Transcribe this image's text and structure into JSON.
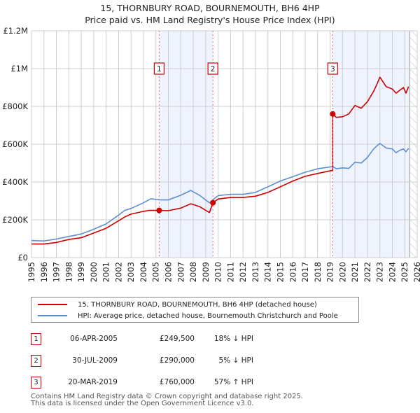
{
  "title_line1": "15, THORNBURY ROAD, BOURNEMOUTH, BH6 4HP",
  "title_line2": "Price paid vs. HM Land Registry's House Price Index (HPI)",
  "chart_data": {
    "type": "line",
    "title": "15, THORNBURY ROAD, BOURNEMOUTH, BH6 4HP — Price paid vs. HM Land Registry's House Price Index (HPI)",
    "xlabel": "",
    "ylabel": "",
    "xlim": [
      1995,
      2026
    ],
    "ylim": [
      0,
      1200000
    ],
    "grid": true,
    "x_ticks": [
      "1995",
      "1996",
      "1997",
      "1998",
      "1999",
      "2000",
      "2001",
      "2002",
      "2003",
      "2004",
      "2005",
      "2006",
      "2007",
      "2008",
      "2009",
      "2010",
      "2011",
      "2012",
      "2013",
      "2014",
      "2015",
      "2016",
      "2017",
      "2018",
      "2019",
      "2020",
      "2021",
      "2022",
      "2023",
      "2024",
      "2025",
      "2026"
    ],
    "y_ticks": [
      {
        "value": 0,
        "label": "£0"
      },
      {
        "value": 200000,
        "label": "£200K"
      },
      {
        "value": 400000,
        "label": "£400K"
      },
      {
        "value": 600000,
        "label": "£600K"
      },
      {
        "value": 800000,
        "label": "£800K"
      },
      {
        "value": 1000000,
        "label": "£1M"
      },
      {
        "value": 1200000,
        "label": "£1.2M"
      }
    ],
    "series": [
      {
        "name": "15, THORNBURY ROAD, BOURNEMOUTH, BH6 4HP (detached house)",
        "color": "#cc0000",
        "x": [
          1995.0,
          1996.0,
          1997.0,
          1997.5,
          1998.0,
          1999.0,
          2000.0,
          2001.0,
          2002.0,
          2002.5,
          2003.0,
          2004.0,
          2004.5,
          2005.26,
          2006.0,
          2007.0,
          2007.8,
          2008.5,
          2009.3,
          2009.58,
          2010.0,
          2011.0,
          2012.0,
          2013.0,
          2014.0,
          2015.0,
          2016.0,
          2017.0,
          2018.0,
          2019.21,
          2019.21,
          2019.5,
          2020.0,
          2020.5,
          2021.0,
          2021.5,
          2022.0,
          2022.5,
          2022.75,
          2023.0,
          2023.5,
          2024.0,
          2024.3,
          2024.6,
          2024.9,
          2025.1,
          2025.3
        ],
        "y": [
          72000,
          72000,
          80000,
          88000,
          96000,
          105000,
          130000,
          155000,
          195000,
          215000,
          230000,
          245000,
          250000,
          249500,
          248000,
          262000,
          285000,
          270000,
          238000,
          290000,
          310000,
          318000,
          318000,
          325000,
          345000,
          375000,
          405000,
          430000,
          445000,
          462000,
          760000,
          742000,
          745000,
          760000,
          805000,
          790000,
          825000,
          880000,
          915000,
          955000,
          905000,
          892000,
          870000,
          885000,
          900000,
          870000,
          905000
        ]
      },
      {
        "name": "HPI: Average price, detached house, Bournemouth Christchurch and Poole",
        "color": "#5b8fcf",
        "x": [
          1995.0,
          1996.0,
          1997.0,
          1998.0,
          1999.0,
          2000.0,
          2001.0,
          2002.0,
          2002.5,
          2003.0,
          2004.0,
          2004.6,
          2005.26,
          2006.0,
          2007.0,
          2007.8,
          2008.5,
          2009.3,
          2009.58,
          2010.0,
          2011.0,
          2012.0,
          2013.0,
          2014.0,
          2015.0,
          2016.0,
          2017.0,
          2018.0,
          2019.21,
          2019.5,
          2020.0,
          2020.5,
          2021.0,
          2021.5,
          2022.0,
          2022.5,
          2022.75,
          2023.0,
          2023.5,
          2024.0,
          2024.3,
          2024.6,
          2024.9,
          2025.1,
          2025.3
        ],
        "y": [
          90000,
          88000,
          98000,
          112000,
          125000,
          150000,
          178000,
          225000,
          250000,
          260000,
          290000,
          312000,
          305000,
          305000,
          330000,
          355000,
          330000,
          290000,
          305000,
          328000,
          335000,
          335000,
          345000,
          375000,
          405000,
          428000,
          452000,
          470000,
          482000,
          470000,
          475000,
          472000,
          505000,
          500000,
          530000,
          575000,
          590000,
          604000,
          580000,
          575000,
          555000,
          568000,
          575000,
          560000,
          578000
        ]
      }
    ],
    "sales": [
      {
        "label": "1",
        "x": 2005.26,
        "y": 249500
      },
      {
        "label": "2",
        "x": 2009.58,
        "y": 290000
      },
      {
        "label": "3",
        "x": 2019.21,
        "y": 760000
      }
    ],
    "shaded_ranges": [
      [
        2005.26,
        2009.58
      ],
      [
        2019.21,
        2025.4
      ]
    ],
    "hatched_range": [
      2025.4,
      2026
    ],
    "legend_position": "below"
  },
  "legend": [
    {
      "label": "15, THORNBURY ROAD, BOURNEMOUTH, BH6 4HP (detached house)",
      "color": "#cc0000"
    },
    {
      "label": "HPI: Average price, detached house, Bournemouth Christchurch and Poole",
      "color": "#5b8fcf"
    }
  ],
  "sales_table": [
    {
      "badge": "1",
      "date": "06-APR-2005",
      "price": "£249,500",
      "hpi": "18% ↓ HPI"
    },
    {
      "badge": "2",
      "date": "30-JUL-2009",
      "price": "£290,000",
      "hpi": "5% ↓ HPI"
    },
    {
      "badge": "3",
      "date": "20-MAR-2019",
      "price": "£760,000",
      "hpi": "57% ↑ HPI"
    }
  ],
  "footer_line1": "Contains HM Land Registry data © Crown copyright and database right 2025.",
  "footer_line2": "This data is licensed under the Open Government Licence v3.0."
}
